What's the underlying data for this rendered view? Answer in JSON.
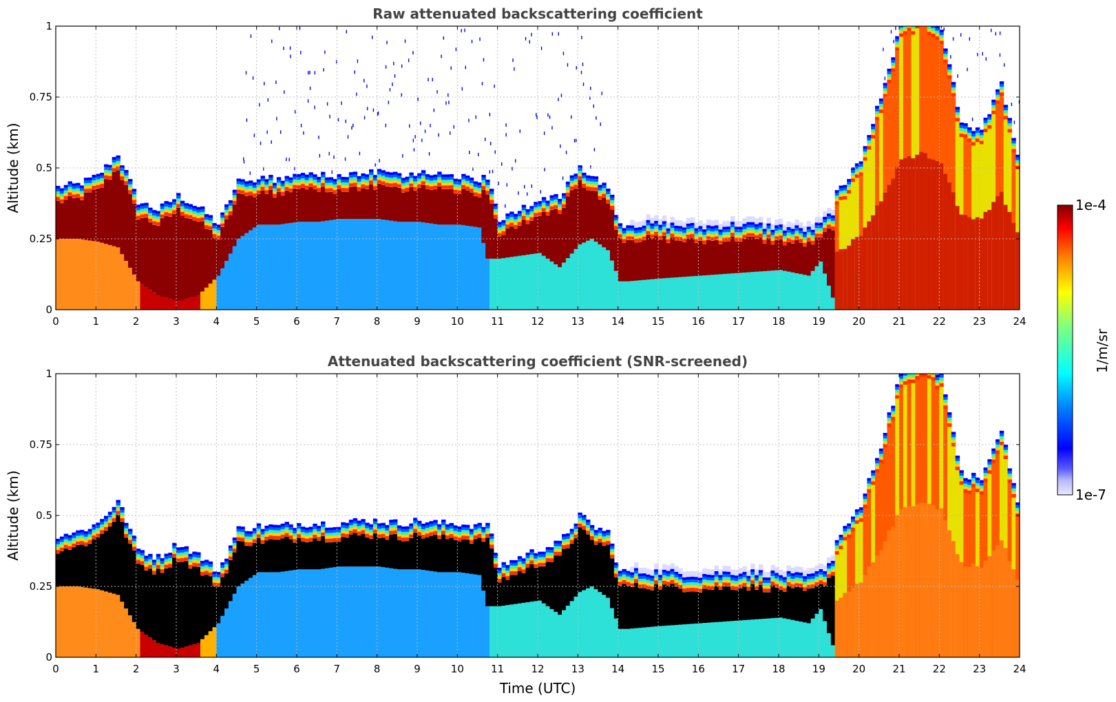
{
  "chart_data": [
    {
      "type": "heatmap",
      "title": "Raw attenuated backscattering coefficient",
      "xlabel": "",
      "ylabel": "Altitude (km)",
      "xlim": [
        0,
        24
      ],
      "ylim": [
        0,
        1
      ],
      "x_ticks": [
        "0",
        "1",
        "2",
        "3",
        "4",
        "5",
        "6",
        "7",
        "8",
        "9",
        "10",
        "11",
        "12",
        "13",
        "14",
        "15",
        "16",
        "17",
        "18",
        "19",
        "20",
        "21",
        "22",
        "23",
        "24"
      ],
      "y_ticks": [
        "0",
        "0.25",
        "0.5",
        "0.75",
        "1"
      ],
      "grid": true,
      "profile": {
        "hours": [
          0,
          0.5,
          1,
          1.5,
          2,
          2.5,
          3,
          3.5,
          4,
          4.5,
          5,
          5.5,
          6,
          6.5,
          7,
          7.5,
          8,
          8.5,
          9,
          9.5,
          10,
          10.5,
          10.7,
          11,
          11.5,
          12,
          12.5,
          13,
          13.3,
          13.7,
          14,
          14.2,
          15,
          16,
          17,
          18,
          18.7,
          19,
          19.4,
          20,
          20.5,
          21,
          21.5,
          22,
          22.5,
          23,
          23.5,
          23.9
        ],
        "layer_top_km": [
          0.43,
          0.44,
          0.47,
          0.55,
          0.38,
          0.35,
          0.4,
          0.36,
          0.3,
          0.45,
          0.46,
          0.46,
          0.47,
          0.47,
          0.47,
          0.48,
          0.48,
          0.47,
          0.48,
          0.47,
          0.47,
          0.46,
          0.47,
          0.32,
          0.35,
          0.38,
          0.4,
          0.5,
          0.46,
          0.44,
          0.3,
          0.3,
          0.3,
          0.29,
          0.3,
          0.29,
          0.28,
          0.3,
          0.36,
          0.48,
          0.7,
          0.95,
          1.0,
          0.95,
          0.6,
          0.58,
          0.75,
          0.5
        ],
        "layer_base_km": [
          0.25,
          0.25,
          0.24,
          0.22,
          0.1,
          0.05,
          0.03,
          0.05,
          0.12,
          0.25,
          0.3,
          0.3,
          0.31,
          0.31,
          0.32,
          0.32,
          0.32,
          0.31,
          0.31,
          0.3,
          0.3,
          0.29,
          0.18,
          0.18,
          0.19,
          0.2,
          0.15,
          0.23,
          0.25,
          0.21,
          0.1,
          0.1,
          0.11,
          0.12,
          0.13,
          0.14,
          0.12,
          0.17,
          0.0,
          0.0,
          0.0,
          0.0,
          0.0,
          0.0,
          0.0,
          0.0,
          0.0,
          0.0
        ]
      }
    },
    {
      "type": "heatmap",
      "title": "Attenuated backscattering coefficient (SNR-screened)",
      "xlabel": "Time (UTC)",
      "ylabel": "Altitude (km)",
      "xlim": [
        0,
        24
      ],
      "ylim": [
        0,
        1
      ],
      "x_ticks": [
        "0",
        "1",
        "2",
        "3",
        "4",
        "5",
        "6",
        "7",
        "8",
        "9",
        "10",
        "11",
        "12",
        "13",
        "14",
        "15",
        "16",
        "17",
        "18",
        "19",
        "20",
        "21",
        "22",
        "23",
        "24"
      ],
      "y_ticks": [
        "0",
        "0.25",
        "0.5",
        "0.75",
        "1"
      ],
      "grid": true
    }
  ],
  "colorbar": {
    "label": "1/m/sr",
    "max_label": "1e-4",
    "min_label": "1e-7",
    "scale": "log",
    "colormap": "jet",
    "range": [
      1e-07,
      0.0001
    ]
  }
}
